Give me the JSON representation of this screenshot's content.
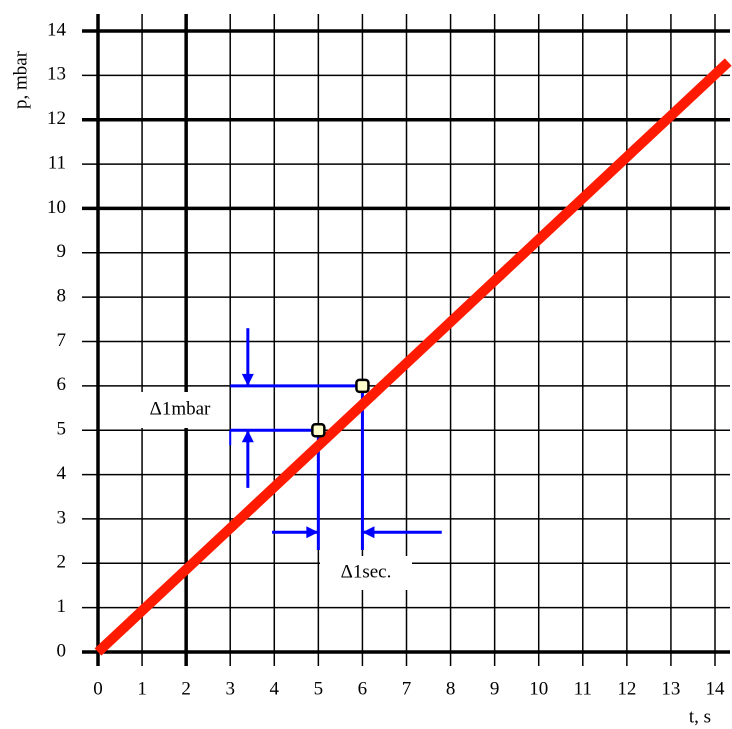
{
  "chart_data": {
    "type": "line",
    "xlabel": "t, s",
    "ylabel": "p, mbar",
    "x": [
      0,
      14.3
    ],
    "series": [
      {
        "color": "#ff1a00",
        "values": [
          0,
          13.3
        ]
      }
    ],
    "points": {
      "x": [
        5,
        6
      ],
      "values": [
        5,
        6
      ],
      "color": "#ffffcc"
    },
    "annotations": [
      "Δ1mbar",
      "Δ1sec."
    ],
    "annotation_color": "#0000ff",
    "xlim": [
      0,
      14
    ],
    "ylim": [
      0,
      14
    ],
    "xticks": [
      0,
      1,
      2,
      3,
      4,
      5,
      6,
      7,
      8,
      9,
      10,
      11,
      12,
      13,
      14
    ],
    "yticks": [
      0,
      1,
      2,
      3,
      4,
      5,
      6,
      7,
      8,
      9,
      10,
      11,
      12,
      13,
      14
    ],
    "grid": true,
    "thick_xgrid": [
      0,
      2
    ],
    "thick_ygrid": [
      0,
      10,
      12,
      14
    ]
  }
}
